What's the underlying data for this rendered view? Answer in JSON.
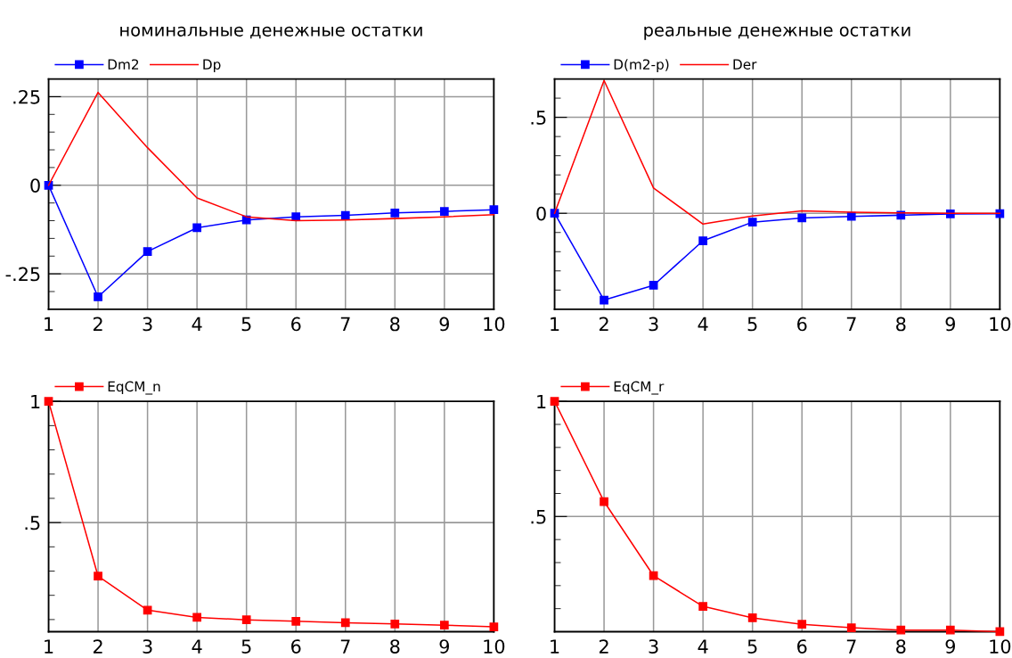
{
  "chart_data": [
    {
      "type": "line",
      "title": "номинальные денежные остатки",
      "x": [
        1,
        2,
        3,
        4,
        5,
        6,
        7,
        8,
        9,
        10
      ],
      "xlim": [
        1,
        10
      ],
      "xticks": [
        1,
        2,
        3,
        4,
        5,
        6,
        7,
        8,
        9,
        10
      ],
      "ylim": [
        -0.35,
        0.3
      ],
      "yticks": [
        {
          "value": -0.3,
          "label": null
        },
        {
          "value": -0.25,
          "label": "-.25"
        },
        {
          "value": -0.2,
          "label": null
        },
        {
          "value": -0.15,
          "label": null
        },
        {
          "value": -0.1,
          "label": null
        },
        {
          "value": -0.05,
          "label": null
        },
        0,
        {
          "value": 0.05,
          "label": null
        },
        {
          "value": 0.1,
          "label": null
        },
        {
          "value": 0.15,
          "label": null
        },
        {
          "value": 0.2,
          "label": null
        },
        {
          "value": 0.25,
          "label": ".25"
        }
      ],
      "grid": true,
      "legend": "top left",
      "series": [
        {
          "name": "Dm2",
          "color": "#0000ff",
          "marker": "square",
          "values": [
            0,
            -0.315,
            -0.187,
            -0.12,
            -0.098,
            -0.089,
            -0.085,
            -0.078,
            -0.074,
            -0.069
          ]
        },
        {
          "name": "Dp",
          "color": "#ff0000",
          "marker": "none",
          "values": [
            0,
            0.262,
            0.106,
            -0.036,
            -0.089,
            -0.1,
            -0.098,
            -0.094,
            -0.089,
            -0.083
          ]
        }
      ]
    },
    {
      "type": "line",
      "title": "реальные денежные остатки",
      "x": [
        1,
        2,
        3,
        4,
        5,
        6,
        7,
        8,
        9,
        10
      ],
      "xlim": [
        1,
        10
      ],
      "xticks": [
        1,
        2,
        3,
        4,
        5,
        6,
        7,
        8,
        9,
        10
      ],
      "ylim": [
        -0.5,
        0.7
      ],
      "yticks": [
        {
          "value": -0.4,
          "label": null
        },
        {
          "value": -0.3,
          "label": null
        },
        {
          "value": -0.2,
          "label": null
        },
        {
          "value": -0.1,
          "label": null
        },
        0,
        {
          "value": 0.1,
          "label": null
        },
        {
          "value": 0.2,
          "label": null
        },
        {
          "value": 0.3,
          "label": null
        },
        {
          "value": 0.4,
          "label": null
        },
        {
          "value": 0.5,
          "label": ".5"
        },
        {
          "value": 0.6,
          "label": null
        }
      ],
      "grid": true,
      "legend": "top left",
      "series": [
        {
          "name": "D(m2-p)",
          "color": "#0000ff",
          "marker": "square",
          "values": [
            0,
            -0.452,
            -0.375,
            -0.143,
            -0.046,
            -0.024,
            -0.016,
            -0.01,
            -0.003,
            -0.002
          ]
        },
        {
          "name": "Der",
          "color": "#ff0000",
          "marker": "none",
          "values": [
            0,
            0.692,
            0.132,
            -0.056,
            -0.014,
            0.013,
            0.006,
            0.002,
            0,
            0
          ]
        }
      ]
    },
    {
      "type": "line",
      "x": [
        1,
        2,
        3,
        4,
        5,
        6,
        7,
        8,
        9,
        10
      ],
      "xlim": [
        1,
        10
      ],
      "xticks": [
        1,
        2,
        3,
        4,
        5,
        6,
        7,
        8,
        9,
        10
      ],
      "ylim": [
        0.05,
        1
      ],
      "yticks": [
        {
          "value": 0.1,
          "label": null
        },
        {
          "value": 0.2,
          "label": null
        },
        {
          "value": 0.3,
          "label": null
        },
        {
          "value": 0.4,
          "label": null
        },
        {
          "value": 0.5,
          "label": ".5"
        },
        {
          "value": 0.6,
          "label": null
        },
        {
          "value": 0.7,
          "label": null
        },
        {
          "value": 0.8,
          "label": null
        },
        {
          "value": 0.9,
          "label": null
        },
        1
      ],
      "grid": true,
      "legend": "top left",
      "series": [
        {
          "name": "EqCM_n",
          "color": "#ff0000",
          "marker": "square",
          "values": [
            1,
            0.279,
            0.139,
            0.109,
            0.099,
            0.093,
            0.087,
            0.082,
            0.077,
            0.07
          ]
        }
      ]
    },
    {
      "type": "line",
      "x": [
        1,
        2,
        3,
        4,
        5,
        6,
        7,
        8,
        9,
        10
      ],
      "xlim": [
        1,
        10
      ],
      "xticks": [
        1,
        2,
        3,
        4,
        5,
        6,
        7,
        8,
        9,
        10
      ],
      "ylim": [
        0,
        1
      ],
      "yticks": [
        {
          "value": 0.1,
          "label": null
        },
        {
          "value": 0.2,
          "label": null
        },
        {
          "value": 0.3,
          "label": null
        },
        {
          "value": 0.4,
          "label": null
        },
        {
          "value": 0.5,
          "label": ".5"
        },
        {
          "value": 0.6,
          "label": null
        },
        {
          "value": 0.7,
          "label": null
        },
        {
          "value": 0.8,
          "label": null
        },
        {
          "value": 0.9,
          "label": null
        },
        1
      ],
      "grid": true,
      "legend": "top left",
      "series": [
        {
          "name": "EqCM_r",
          "color": "#ff0000",
          "marker": "square",
          "values": [
            1,
            0.565,
            0.243,
            0.11,
            0.06,
            0.032,
            0.017,
            0.007,
            0.007,
            0
          ]
        }
      ]
    }
  ]
}
